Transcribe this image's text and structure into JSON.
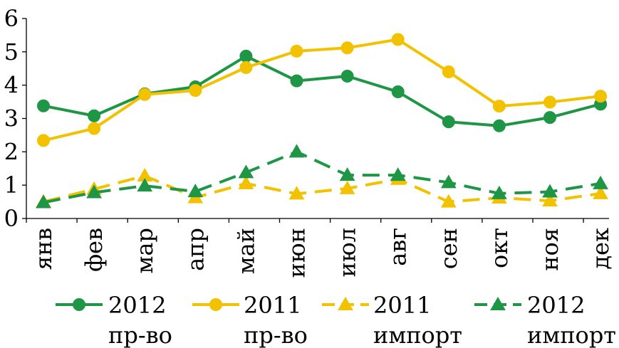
{
  "chart_data": {
    "type": "line",
    "title": "",
    "xlabel": "",
    "ylabel": "",
    "ylim": [
      0,
      6
    ],
    "yticks": [
      "0",
      "1",
      "2",
      "3",
      "4",
      "5",
      "6"
    ],
    "grid": false,
    "legend_position": "bottom",
    "categories": [
      "янв",
      "фев",
      "мар",
      "апр",
      "май",
      "июн",
      "июл",
      "авг",
      "сен",
      "окт",
      "ноя",
      "дек"
    ],
    "series": [
      {
        "name_lines": [
          "2012",
          "пр-во"
        ],
        "color": "#1e9646",
        "marker": "circle",
        "dash": "solid",
        "values": [
          3.38,
          3.08,
          3.74,
          3.95,
          4.87,
          4.13,
          4.27,
          3.8,
          2.9,
          2.78,
          3.03,
          3.43
        ]
      },
      {
        "name_lines": [
          "2011",
          "пр-во"
        ],
        "color": "#f2c100",
        "marker": "circle",
        "dash": "solid",
        "values": [
          2.34,
          2.7,
          3.72,
          3.84,
          4.53,
          5.02,
          5.12,
          5.37,
          4.4,
          3.37,
          3.49,
          3.67
        ]
      },
      {
        "name_lines": [
          "2011",
          "импорт"
        ],
        "color": "#f2c100",
        "marker": "triangle",
        "dash": "dashed",
        "values": [
          0.5,
          0.88,
          1.28,
          0.63,
          1.05,
          0.74,
          0.9,
          1.18,
          0.5,
          0.62,
          0.53,
          0.75
        ]
      },
      {
        "name_lines": [
          "2012",
          "импорт"
        ],
        "color": "#1e9646",
        "marker": "triangle",
        "dash": "dashed",
        "values": [
          0.48,
          0.78,
          0.98,
          0.81,
          1.38,
          2.0,
          1.3,
          1.3,
          1.08,
          0.75,
          0.8,
          1.05
        ]
      }
    ]
  }
}
